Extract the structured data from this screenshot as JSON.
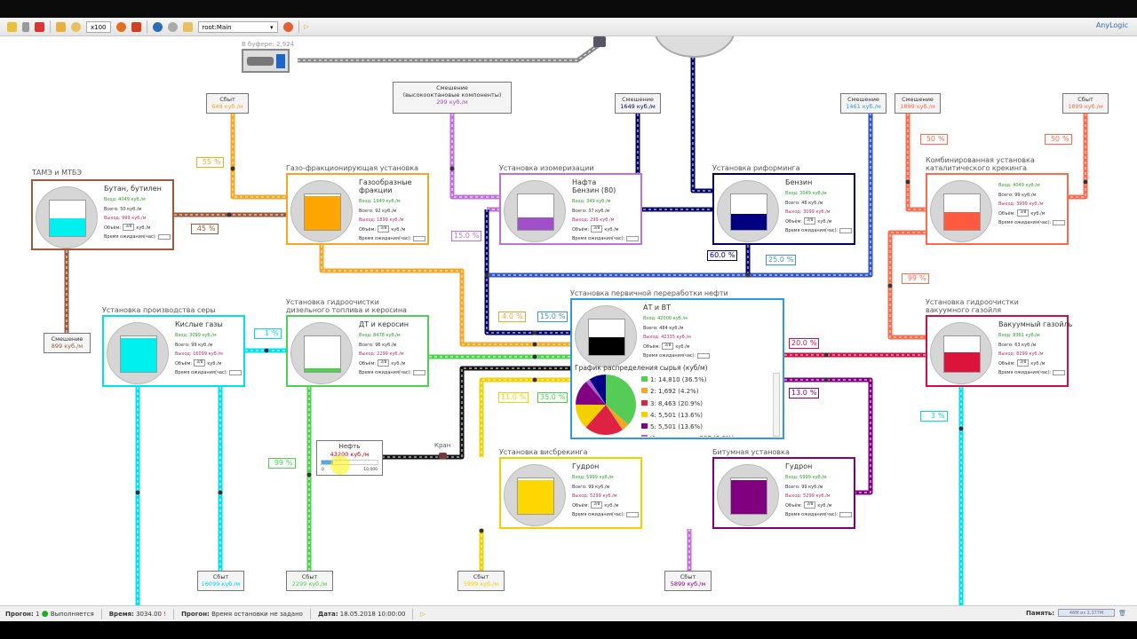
{
  "toolbar": {
    "speed": "x100",
    "model_select": "root:Main",
    "brand": "AnyLogic"
  },
  "buffer": {
    "label": "В буфере: 2,924"
  },
  "units": [
    {
      "id": "tame",
      "title": "ТАМЭ и МТБЭ",
      "product": "Бутан, бутилен",
      "in": "Вход: 4049 куб./м",
      "total": "Всего: 50 куб./м",
      "out": "Выход: 999 куб./м",
      "volume": "3/8",
      "color": "#9b5a3c",
      "fill_color": "#00f0f0",
      "fill_level": 0.5
    },
    {
      "id": "gas",
      "title": "Газо-фракционирующая установка",
      "product": "Газообразные\nфракции",
      "in": "Вход: 1949 куб./м",
      "total": "Всего: 92 куб./м",
      "out": "Выход: 1899 куб./м",
      "volume": "3/8",
      "color": "#f5a623",
      "fill_color": "#ffa500",
      "fill_level": 0.95
    },
    {
      "id": "isom",
      "title": "Установка изомеризации",
      "product": "Нафта\nБензин (80)",
      "in": "Вход: 349 куб./м",
      "total": "Всего: 37 куб./м",
      "out": "Выход: 299 куб./м",
      "volume": "3/8",
      "color": "#c070d8",
      "fill_color": "#a050c8",
      "fill_level": 0.35
    },
    {
      "id": "reform",
      "title": "Установка риформинга",
      "product": "Бензин",
      "in": "Вход: 3049 куб./м",
      "total": "Всего: 48 куб./м",
      "out": "Выход: 3099 куб./м",
      "volume": "3/8",
      "color": "#000066",
      "fill_color": "#000080",
      "fill_level": 0.45
    },
    {
      "id": "crack",
      "title": "Комбинированная установка\nкаталитического крекинга",
      "product": "",
      "in": "Вход: 4049 куб./м",
      "total": "Всего: 99 куб./м",
      "out": "Выход: 3999 куб./м",
      "volume": "3/8",
      "color": "#ff6a4d",
      "fill_color": "#ff5a40",
      "fill_level": 0.5
    },
    {
      "id": "sulfur",
      "title": "Установка производства серы",
      "product": "Кислые газы",
      "in": "Вход: 3099 куб./м",
      "total": "Всего: 99 куб./м",
      "out": "Выход: 16099 куб./м",
      "volume": "3/8",
      "color": "#00e0f0",
      "fill_color": "#00f0f0",
      "fill_level": 0.95
    },
    {
      "id": "diesel",
      "title": "Установка гидроочистки\nдизельного топлива и керосина",
      "product": "ДТ и керосин",
      "in": "Вход: 8478 куб./м",
      "total": "Всего: 96 куб./м",
      "out": "Выход: 2299 куб./м",
      "volume": "3/8",
      "color": "#50d050",
      "fill_color": "#50d050",
      "fill_level": 0.1
    },
    {
      "id": "vacuum",
      "title": "Установка гидроочистки\nвакуумного газойля",
      "product": "Вакуумный газойль",
      "in": "Вход: 8361 куб./м",
      "total": "Всего: 63 куб./м",
      "out": "Выход: 8299 куб./м",
      "volume": "3/8",
      "color": "#cc1144",
      "fill_color": "#dc143c",
      "fill_level": 0.55
    },
    {
      "id": "visbreak",
      "title": "Установка висбрекинга",
      "product": "Гудрон",
      "in": "Вход: 5999 куб./м",
      "total": "Всего: 99 куб./м",
      "out": "Выход: 5299 куб./м",
      "volume": "3/8",
      "color": "#f5d000",
      "fill_color": "#ffd700",
      "fill_level": 0.95
    },
    {
      "id": "bitumen",
      "title": "Битумная установка",
      "product": "Гудрон",
      "in": "Вход: 5999 куб./м",
      "total": "Всего: 99 куб./м",
      "out": "Выход: 5299 куб./м",
      "volume": "3/8",
      "color": "#800080",
      "fill_color": "#800080",
      "fill_level": 0.95
    }
  ],
  "primary": {
    "title": "Установка первичной переработки нефти",
    "product": "АТ и ВТ",
    "in": "Вход: 42000 куб./м",
    "total": "Всего: 484 куб./м",
    "out": "Выход: 42335 куб./м",
    "volume": "3/8",
    "color": "#3399dd",
    "chart_title": "График распределения сырья (куб/м)"
  },
  "unit_labels": {
    "volume": "Объём:",
    "volume_unit": "куб./м",
    "wait": "Время ожидания(час):"
  },
  "nodes": [
    {
      "title": "Сбыт",
      "value": "649 куб./м",
      "color": "#f5a623"
    },
    {
      "title": "Смешение\n(высокооктановые компоненты)",
      "value": "299 куб./м",
      "color": "#a050c8"
    },
    {
      "title": "Смешение",
      "value": "1649 куб./м",
      "color": "#000066"
    },
    {
      "title": "Смешение",
      "value": "1461 куб./м",
      "color": "#3399dd"
    },
    {
      "title": "Смешение",
      "value": "1899 куб./м",
      "color": "#ff6a4d"
    },
    {
      "title": "Сбыт",
      "value": "1899 куб./м",
      "color": "#ff6a4d"
    },
    {
      "title": "Смешение",
      "value": "899 куб./м",
      "color": "#9b5a3c"
    },
    {
      "title": "Сбыт",
      "value": "16099 куб./м",
      "color": "#00d8e8"
    },
    {
      "title": "Сбыт",
      "value": "2299 куб./м",
      "color": "#50d050"
    },
    {
      "title": "Сбыт",
      "value": "5999 куб./м",
      "color": "#f5d000"
    },
    {
      "title": "Сбыт",
      "value": "5899 куб./м",
      "color": "#800080"
    }
  ],
  "splits": [
    {
      "value": "55",
      "color": "#f5a623"
    },
    {
      "value": "45",
      "color": "#9b5a3c"
    },
    {
      "value": "15.0",
      "color": "#c070d8"
    },
    {
      "value": "60.0",
      "color": "#000066"
    },
    {
      "value": "25.0",
      "color": "#3399dd"
    },
    {
      "value": "50",
      "color": "#ff6a4d"
    },
    {
      "value": "50",
      "color": "#ff6a4d"
    },
    {
      "value": "99",
      "color": "#ff6a4d"
    },
    {
      "value": "4.0",
      "color": "#f5a623"
    },
    {
      "value": "15.0",
      "color": "#3399dd"
    },
    {
      "value": "20.0",
      "color": "#cc1144"
    },
    {
      "value": "13.0",
      "color": "#800080"
    },
    {
      "value": "11.0",
      "color": "#f5d000"
    },
    {
      "value": "35.0",
      "color": "#50d050"
    },
    {
      "value": "1",
      "color": "#00d8e8"
    },
    {
      "value": "99",
      "color": "#50d050"
    },
    {
      "value": "3",
      "color": "#00d8e8"
    }
  ],
  "pct_sign": "%",
  "oil_tank": {
    "title": "Нефть",
    "value": "43200 куб./м",
    "scale_min": "0",
    "scale_max": "10,000",
    "fill": 0.2
  },
  "valve": {
    "label": "Кран"
  },
  "chart_data": {
    "type": "pie",
    "title": "График распределения сырья (куб/м)",
    "slices": [
      {
        "label": "1: 14,810 (36.5%)",
        "value": 14810,
        "color": "#55cc55"
      },
      {
        "label": "2: 1,692 (4.2%)",
        "value": 1692,
        "color": "#f5a623"
      },
      {
        "label": "3: 8,463 (20.9%)",
        "value": 8463,
        "color": "#dd2244"
      },
      {
        "label": "4: 5,501 (13.6%)",
        "value": 5501,
        "color": "#f5d000"
      },
      {
        "label": "5: 5,501 (13.6%)",
        "value": 5501,
        "color": "#800080"
      },
      {
        "label": "Изомеризация 937 (2.3%)",
        "value": 937,
        "color": "#b060d0"
      },
      {
        "label": "",
        "value": 3671,
        "color": "#000080"
      }
    ],
    "legend": "right"
  },
  "status": {
    "run_label": "Прогон:",
    "run_value": "1",
    "run_state": "Выполняется",
    "time_label": "Время:",
    "time_value": "3034.00",
    "stop_label": "Прогон:",
    "stop_value": "Время остановки не задано",
    "date_label": "Дата:",
    "date_value": "18.05.2018 10:00:00",
    "memory_label": "Память:",
    "memory_value": "46М из 2,377М"
  }
}
